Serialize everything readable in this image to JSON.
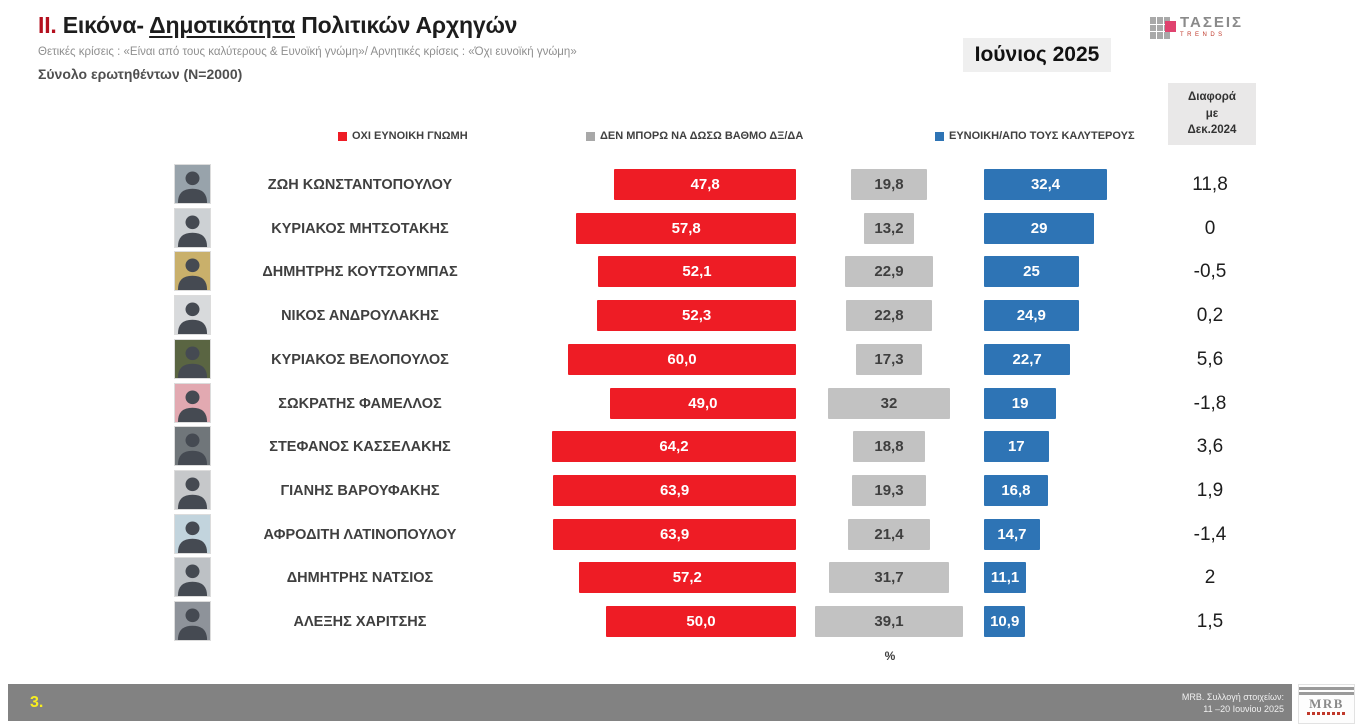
{
  "slide": {
    "title": {
      "numeral": "ΙΙ.",
      "pre": " Εικόνα- ",
      "underlined": "Δημοτικότητα",
      "post": " Πολιτικών Αρχηγών"
    },
    "subtitle": "Θετικές κρίσεις : «Είναι από τους καλύτερους &  Ευνοϊκή γνώμη»/ Αρνητικές κρίσεις : «Όχι ευνοϊκή γνώμη»",
    "sample": "Σύνολο ερωτηθέντων (N=2000)",
    "period": "Ιούνιος 2025",
    "logo": {
      "name": "ΤΑΣΕΙΣ",
      "sub": "TRENDS"
    },
    "diff_header": "Διαφορά\nμε\nΔεκ.2024",
    "percent_label": "%",
    "footer": {
      "page": "3.",
      "note_line1": "MRB. Συλλογή στοιχείων:",
      "note_line2": "11 –20 Ιουνίου 2025",
      "mrb_logo": "MRB"
    }
  },
  "legend": [
    {
      "label": "ΟΧΙ ΕΥΝΟΙΚΗ ΓΝΩΜΗ",
      "color": "#ee1c25"
    },
    {
      "label": "ΔΕΝ ΜΠΟΡΩ ΝΑ ΔΩΣΩ ΒΑΘΜΟ ΔΞ/ΔΑ",
      "color": "#a8a8a8"
    },
    {
      "label": "ΕΥΝΟΙΚΗ/ΑΠΟ ΤΟΥΣ ΚΑΛΥΤΕΡΟΥΣ",
      "color": "#2e74b5"
    }
  ],
  "chart_data": {
    "type": "bar",
    "orientation": "horizontal",
    "unit": "%",
    "title": "Δημοτικότητα Πολιτικών Αρχηγών — Ιούνιος 2025",
    "categories": [
      "ΖΩΗ ΚΩΝΣΤΑΝΤΟΠΟΥΛΟΥ",
      "ΚΥΡΙΑΚΟΣ ΜΗΤΣΟΤΑΚΗΣ",
      "ΔΗΜΗΤΡΗΣ ΚΟΥΤΣΟΥΜΠΑΣ",
      "ΝΙΚΟΣ ΑΝΔΡΟΥΛΑΚΗΣ",
      "ΚΥΡΙΑΚΟΣ ΒΕΛΟΠΟΥΛΟΣ",
      "ΣΩΚΡΑΤΗΣ ΦΑΜΕΛΛΟΣ",
      "ΣΤΕΦΑΝΟΣ ΚΑΣΣΕΛΑΚΗΣ",
      "ΓΙΑΝΗΣ ΒΑΡΟΥΦΑΚΗΣ",
      "ΑΦΡΟΔΙΤΗ ΛΑΤΙΝΟΠΟΥΛΟΥ",
      "ΔΗΜΗΤΡΗΣ ΝΑΤΣΙΟΣ",
      "ΑΛΕΞΗΣ ΧΑΡΙΤΣΗΣ"
    ],
    "series": [
      {
        "name": "ΟΧΙ ΕΥΝΟΙΚΗ ΓΝΩΜΗ",
        "color": "#ee1c25",
        "values": [
          47.8,
          57.8,
          52.1,
          52.3,
          60.0,
          49.0,
          64.2,
          63.9,
          63.9,
          57.2,
          50.0
        ],
        "labels": [
          "47,8",
          "57,8",
          "52,1",
          "52,3",
          "60,0",
          "49,0",
          "64,2",
          "63,9",
          "63,9",
          "57,2",
          "50,0"
        ]
      },
      {
        "name": "ΔΕΝ ΜΠΟΡΩ ΝΑ ΔΩΣΩ ΒΑΘΜΟ ΔΞ/ΔΑ",
        "color": "#c2c2c2",
        "values": [
          19.8,
          13.2,
          22.9,
          22.8,
          17.3,
          32,
          18.8,
          19.3,
          21.4,
          31.7,
          39.1
        ],
        "labels": [
          "19,8",
          "13,2",
          "22,9",
          "22,8",
          "17,3",
          "32",
          "18,8",
          "19,3",
          "21,4",
          "31,7",
          "39,1"
        ]
      },
      {
        "name": "ΕΥΝΟΙΚΗ/ΑΠΟ ΤΟΥΣ ΚΑΛΥΤΕΡΟΥΣ",
        "color": "#2e74b5",
        "values": [
          32.4,
          29,
          25,
          24.9,
          22.7,
          19,
          17,
          16.8,
          14.7,
          11.1,
          10.9
        ],
        "labels": [
          "32,4",
          "29",
          "25",
          "24,9",
          "22,7",
          "19",
          "17",
          "16,8",
          "14,7",
          "11,1",
          "10,9"
        ]
      }
    ],
    "diff_with_dec_2024": [
      "11,8",
      "0",
      "-0,5",
      "0,2",
      "5,6",
      "-1,8",
      "3,6",
      "1,9",
      "-1,4",
      "2",
      "1,5"
    ],
    "legend_position": "top",
    "value_labels": "inside-bars"
  },
  "avatar_colors": [
    "#98a3ab",
    "#cdd1d4",
    "#c9b06b",
    "#d8dadc",
    "#5a6542",
    "#e2a9b1",
    "#70767a",
    "#c6c8ca",
    "#c2d4dd",
    "#bdc1c5",
    "#8e939a"
  ]
}
